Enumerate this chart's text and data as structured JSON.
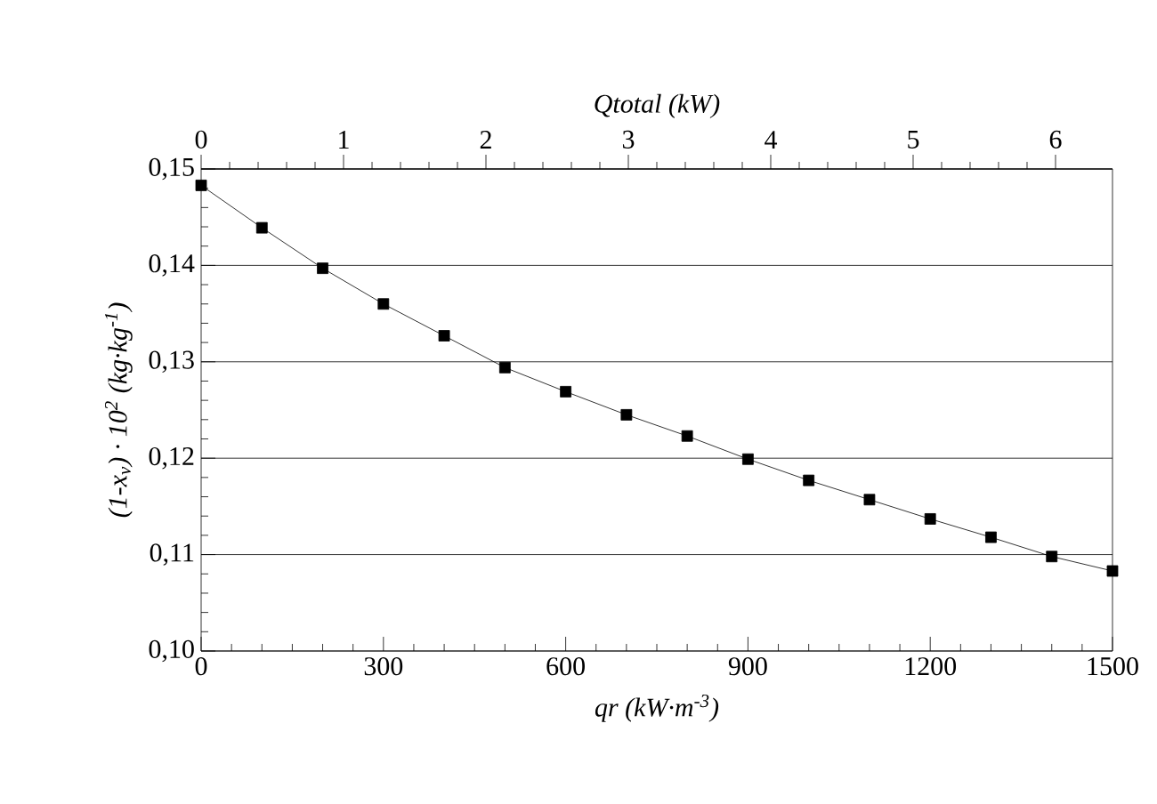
{
  "chart_data": {
    "type": "line",
    "xlabel": "qr (kW·m$^{-3}$)",
    "ylabel": "(1-x$_{v}$) · 10$^{2}$ (kg·kg$^{-1}$)",
    "x2label": "Qtotal (kW)",
    "x": [
      0,
      100,
      200,
      300,
      400,
      500,
      600,
      700,
      800,
      900,
      1000,
      1100,
      1200,
      1300,
      1400,
      1500
    ],
    "series": [
      {
        "color": "#000000",
        "values": [
          0.1483,
          0.1439,
          0.1397,
          0.136,
          0.1327,
          0.1294,
          0.1269,
          0.1245,
          0.1223,
          0.1199,
          0.1177,
          0.1157,
          0.1137,
          0.1118,
          0.1098,
          0.1083
        ]
      }
    ],
    "xlim": [
      0,
      1500
    ],
    "xticks": [
      0,
      300,
      600,
      900,
      1200,
      1500
    ],
    "ylim": [
      0.1,
      0.15
    ],
    "yticks": [
      {
        "value": 0.1,
        "label": "0,10"
      },
      {
        "value": 0.11,
        "label": "0,11"
      },
      {
        "value": 0.12,
        "label": "0,12"
      },
      {
        "value": 0.13,
        "label": "0,13"
      },
      {
        "value": 0.14,
        "label": "0,14"
      },
      {
        "value": 0.15,
        "label": "0,15"
      }
    ],
    "x2lim": [
      0,
      6.4
    ],
    "x2ticks": [
      0,
      1,
      2,
      3,
      4,
      5,
      6
    ],
    "grid": "y",
    "marker": "square",
    "line_style": "solid"
  }
}
